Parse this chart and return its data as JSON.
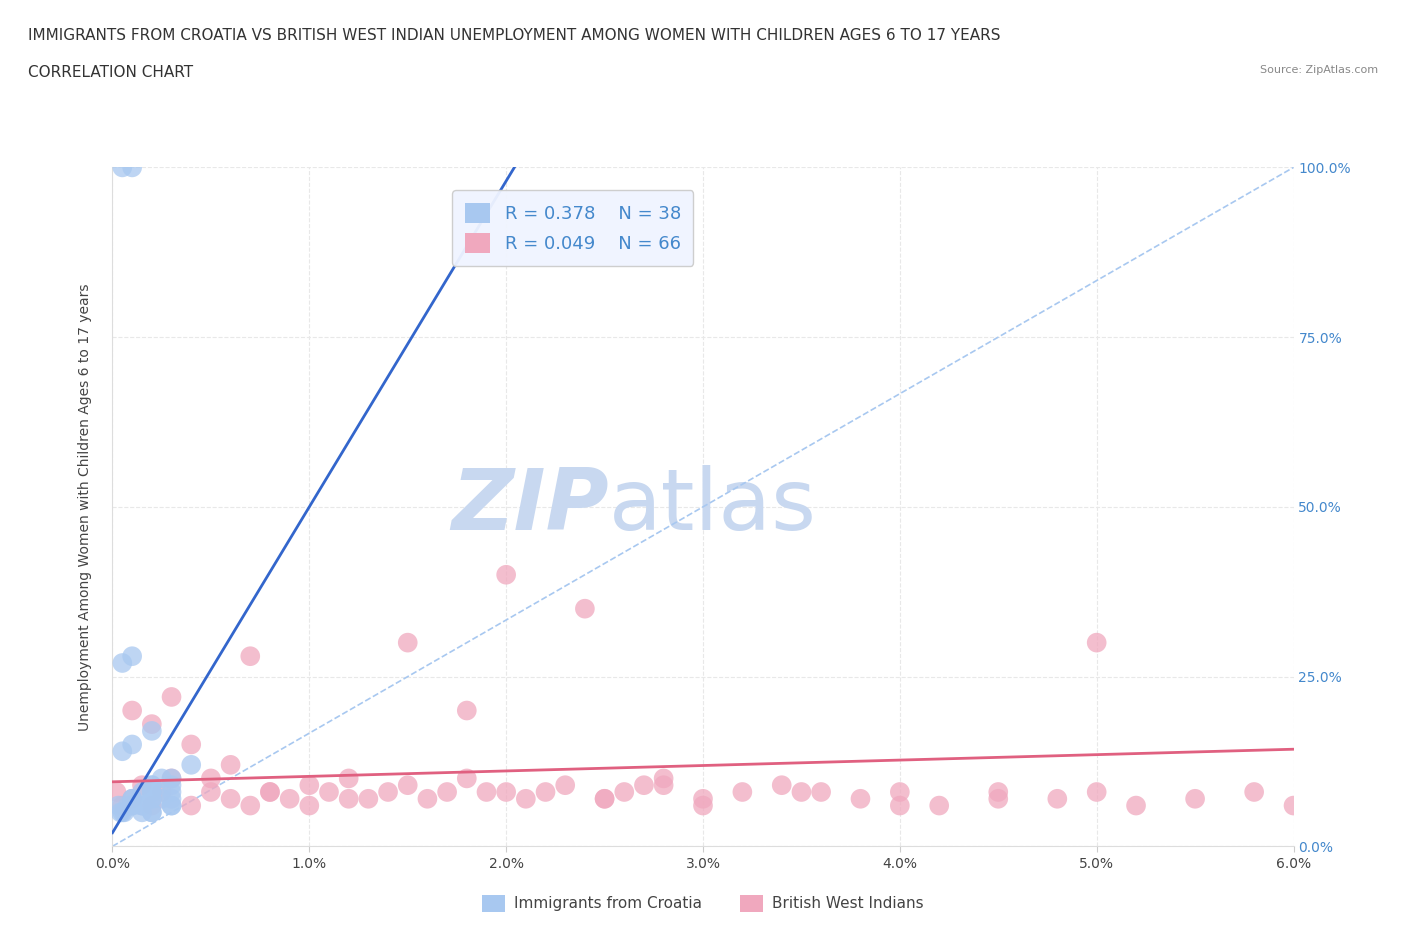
{
  "title_line1": "IMMIGRANTS FROM CROATIA VS BRITISH WEST INDIAN UNEMPLOYMENT AMONG WOMEN WITH CHILDREN AGES 6 TO 17 YEARS",
  "title_line2": "CORRELATION CHART",
  "source_text": "Source: ZipAtlas.com",
  "ylabel": "Unemployment Among Women with Children Ages 6 to 17 years",
  "xlim": [
    0.0,
    0.06
  ],
  "ylim": [
    0.0,
    1.0
  ],
  "xtick_labels": [
    "0.0%",
    "1.0%",
    "2.0%",
    "3.0%",
    "4.0%",
    "5.0%",
    "6.0%"
  ],
  "xtick_values": [
    0.0,
    0.01,
    0.02,
    0.03,
    0.04,
    0.05,
    0.06
  ],
  "ytick_labels": [
    "0.0%",
    "25.0%",
    "50.0%",
    "75.0%",
    "100.0%"
  ],
  "ytick_values": [
    0.0,
    0.25,
    0.5,
    0.75,
    1.0
  ],
  "croatia_color": "#a8c8f0",
  "bwi_color": "#f0a8be",
  "croatia_line_color": "#3366cc",
  "bwi_line_color": "#e06080",
  "diag_line_color": "#a8c8f0",
  "tick_color": "#4488cc",
  "croatia_R": "0.378",
  "croatia_N": "38",
  "bwi_R": "0.049",
  "bwi_N": "66",
  "legend_label_croatia": "Immigrants from Croatia",
  "legend_label_bwi": "British West Indians",
  "watermark_text1": "ZIP",
  "watermark_text2": "atlas",
  "watermark_color1": "#c8d8f0",
  "watermark_color2": "#c8d8f0",
  "croatia_scatter_x": [
    0.0005,
    0.001,
    0.0015,
    0.002,
    0.002,
    0.0025,
    0.003,
    0.0005,
    0.001,
    0.0015,
    0.002,
    0.0025,
    0.003,
    0.003,
    0.0005,
    0.001,
    0.002,
    0.002,
    0.003,
    0.004,
    0.0003,
    0.0006,
    0.001,
    0.001,
    0.0015,
    0.002,
    0.0004,
    0.0008,
    0.001,
    0.002,
    0.002,
    0.003,
    0.0005,
    0.001,
    0.002,
    0.003,
    0.0015,
    0.002
  ],
  "croatia_scatter_y": [
    1.0,
    1.0,
    0.06,
    0.05,
    0.08,
    0.07,
    0.06,
    0.27,
    0.28,
    0.05,
    0.07,
    0.1,
    0.08,
    0.06,
    0.14,
    0.15,
    0.17,
    0.07,
    0.09,
    0.12,
    0.06,
    0.05,
    0.06,
    0.07,
    0.08,
    0.09,
    0.05,
    0.06,
    0.07,
    0.08,
    0.09,
    0.1,
    0.05,
    0.06,
    0.08,
    0.07,
    0.06,
    0.05
  ],
  "bwi_scatter_x": [
    0.0002,
    0.0005,
    0.001,
    0.0015,
    0.002,
    0.0025,
    0.003,
    0.004,
    0.005,
    0.006,
    0.007,
    0.008,
    0.009,
    0.01,
    0.011,
    0.012,
    0.013,
    0.014,
    0.015,
    0.016,
    0.017,
    0.018,
    0.019,
    0.02,
    0.021,
    0.022,
    0.023,
    0.024,
    0.025,
    0.026,
    0.027,
    0.028,
    0.03,
    0.032,
    0.034,
    0.036,
    0.038,
    0.04,
    0.042,
    0.045,
    0.048,
    0.05,
    0.052,
    0.055,
    0.058,
    0.06,
    0.001,
    0.002,
    0.003,
    0.004,
    0.005,
    0.006,
    0.007,
    0.008,
    0.01,
    0.012,
    0.015,
    0.018,
    0.02,
    0.025,
    0.028,
    0.03,
    0.035,
    0.04,
    0.045,
    0.05
  ],
  "bwi_scatter_y": [
    0.08,
    0.06,
    0.07,
    0.09,
    0.06,
    0.08,
    0.1,
    0.06,
    0.08,
    0.07,
    0.06,
    0.08,
    0.07,
    0.09,
    0.08,
    0.1,
    0.07,
    0.08,
    0.09,
    0.07,
    0.08,
    0.1,
    0.08,
    0.4,
    0.07,
    0.08,
    0.09,
    0.35,
    0.07,
    0.08,
    0.09,
    0.1,
    0.07,
    0.08,
    0.09,
    0.08,
    0.07,
    0.08,
    0.06,
    0.08,
    0.07,
    0.3,
    0.06,
    0.07,
    0.08,
    0.06,
    0.2,
    0.18,
    0.22,
    0.15,
    0.1,
    0.12,
    0.28,
    0.08,
    0.06,
    0.07,
    0.3,
    0.2,
    0.08,
    0.07,
    0.09,
    0.06,
    0.08,
    0.06,
    0.07,
    0.08
  ],
  "bg_color": "#ffffff",
  "plot_bg_color": "#ffffff",
  "grid_color": "#e8e8e8",
  "grid_style": "--",
  "title_fontsize": 11,
  "axis_label_fontsize": 10,
  "tick_fontsize": 10,
  "legend_fontsize": 13
}
